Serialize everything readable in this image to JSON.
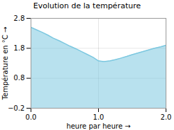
{
  "chart_data": {
    "type": "area",
    "title": "Evolution de la température",
    "xlabel": "heure par heure",
    "ylabel": "Température en °C",
    "x": [
      0,
      0.08,
      0.17,
      0.25,
      0.33,
      0.42,
      0.5,
      0.58,
      0.67,
      0.75,
      0.83,
      0.92,
      1.0,
      1.08,
      1.17,
      1.25,
      1.33,
      1.42,
      1.5,
      1.58,
      1.67,
      1.75,
      1.83,
      1.92,
      2.0
    ],
    "values": [
      2.5,
      2.42,
      2.33,
      2.24,
      2.14,
      2.05,
      1.96,
      1.87,
      1.78,
      1.69,
      1.6,
      1.5,
      1.38,
      1.36,
      1.38,
      1.42,
      1.47,
      1.53,
      1.59,
      1.64,
      1.7,
      1.75,
      1.8,
      1.85,
      1.9
    ],
    "color": "#7dc8e0",
    "xlim": [
      0,
      2
    ],
    "xticks": [
      0,
      1,
      2
    ],
    "ylim": [
      -0.2,
      2.8
    ],
    "yticks": [
      -0.2,
      0.8,
      1.8,
      2.8
    ],
    "grid": true
  }
}
